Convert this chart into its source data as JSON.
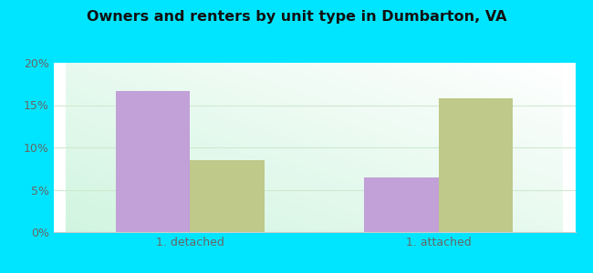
{
  "title": "Owners and renters by unit type in Dumbarton, VA",
  "categories": [
    "1. detached",
    "1. attached"
  ],
  "owner_values": [
    16.7,
    6.5
  ],
  "renter_values": [
    8.5,
    15.8
  ],
  "owner_color": "#c2a0d8",
  "renter_color": "#bec98a",
  "outer_background": "#00e5ff",
  "ylim": [
    0,
    0.2
  ],
  "yticks": [
    0.0,
    0.05,
    0.1,
    0.15,
    0.2
  ],
  "ytick_labels": [
    "0%",
    "5%",
    "10%",
    "15%",
    "20%"
  ],
  "bar_width": 0.3
}
